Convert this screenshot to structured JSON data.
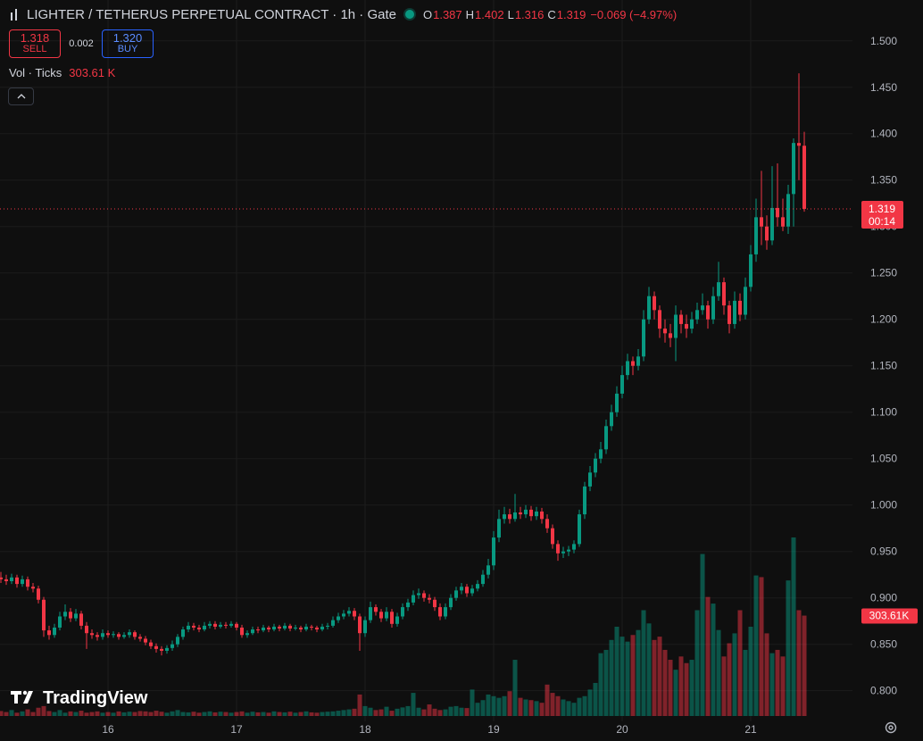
{
  "header": {
    "title": "LIGHTER / TETHERUS PERPETUAL CONTRACT · 1h · Gate",
    "legend": [
      {
        "label": "O",
        "value": 1.387
      },
      {
        "label": "H",
        "value": 1.402
      },
      {
        "label": "L",
        "value": 1.316
      },
      {
        "label": "C",
        "value": 1.319
      }
    ],
    "change": "−0.069 (−4.97%)",
    "sell": {
      "price": "1.318",
      "label": "SELL"
    },
    "spread": 0.002,
    "buy": {
      "price": "1.320",
      "label": "BUY"
    },
    "volume_title": "Vol · Ticks",
    "volume_value": "303.61 K",
    "watermark": "TradingView"
  },
  "chart_data": {
    "type": "candlestick",
    "up_color": "#089981",
    "down_color": "#f23645",
    "grid": true,
    "ylim": [
      0.767,
      1.544
    ],
    "yticks": [
      {
        "value": 0.8,
        "label": "0.800"
      },
      {
        "value": 0.85,
        "label": "0.850"
      },
      {
        "value": 0.9,
        "label": "0.900"
      },
      {
        "value": 0.95,
        "label": "0.950"
      },
      {
        "value": 1.0,
        "label": "1.000"
      },
      {
        "value": 1.05,
        "label": "1.050"
      },
      {
        "value": 1.1,
        "label": "1.100"
      },
      {
        "value": 1.15,
        "label": "1.150"
      },
      {
        "value": 1.2,
        "label": "1.200"
      },
      {
        "value": 1.25,
        "label": "1.250"
      },
      {
        "value": 1.3,
        "label": "1.300"
      },
      {
        "value": 1.35,
        "label": "1.350"
      },
      {
        "value": 1.4,
        "label": "1.400"
      },
      {
        "value": 1.45,
        "label": "1.450"
      },
      {
        "value": 1.5,
        "label": "1.500"
      }
    ],
    "last_price_label": "1.319",
    "countdown": "00:14",
    "volume_badge": "303.61K",
    "categories": [
      null,
      null,
      null,
      null,
      null,
      null,
      null,
      null,
      null,
      null,
      null,
      null,
      null,
      null,
      null,
      null,
      null,
      null,
      null,
      null,
      "16",
      null,
      null,
      null,
      null,
      null,
      null,
      null,
      null,
      null,
      null,
      null,
      null,
      null,
      null,
      null,
      null,
      null,
      null,
      null,
      null,
      null,
      null,
      null,
      "17",
      null,
      null,
      null,
      null,
      null,
      null,
      null,
      null,
      null,
      null,
      null,
      null,
      null,
      null,
      null,
      null,
      null,
      null,
      null,
      null,
      null,
      null,
      null,
      "18",
      null,
      null,
      null,
      null,
      null,
      null,
      null,
      null,
      null,
      null,
      null,
      null,
      null,
      null,
      null,
      null,
      null,
      null,
      null,
      null,
      null,
      null,
      null,
      "19",
      null,
      null,
      null,
      null,
      null,
      null,
      null,
      null,
      null,
      null,
      null,
      null,
      null,
      null,
      null,
      null,
      null,
      null,
      null,
      null,
      null,
      null,
      null,
      "20",
      null,
      null,
      null,
      null,
      null,
      null,
      null,
      null,
      null,
      null,
      null,
      null,
      null,
      null,
      null,
      null,
      null,
      null,
      null,
      null,
      null,
      null,
      null,
      "21",
      null,
      null,
      null,
      null,
      null,
      null,
      null,
      null,
      null,
      null
    ],
    "ohlc": [
      [
        0.922,
        0.928,
        0.916,
        0.92
      ],
      [
        0.92,
        0.925,
        0.914,
        0.918
      ],
      [
        0.918,
        0.926,
        0.915,
        0.922
      ],
      [
        0.922,
        0.925,
        0.911,
        0.915
      ],
      [
        0.915,
        0.924,
        0.912,
        0.92
      ],
      [
        0.92,
        0.923,
        0.908,
        0.912
      ],
      [
        0.912,
        0.916,
        0.906,
        0.91
      ],
      [
        0.91,
        0.913,
        0.894,
        0.898
      ],
      [
        0.898,
        0.901,
        0.858,
        0.865
      ],
      [
        0.865,
        0.87,
        0.855,
        0.86
      ],
      [
        0.86,
        0.872,
        0.857,
        0.868
      ],
      [
        0.868,
        0.885,
        0.865,
        0.88
      ],
      [
        0.88,
        0.893,
        0.876,
        0.885
      ],
      [
        0.885,
        0.889,
        0.874,
        0.878
      ],
      [
        0.878,
        0.888,
        0.875,
        0.883
      ],
      [
        0.883,
        0.886,
        0.866,
        0.87
      ],
      [
        0.87,
        0.874,
        0.845,
        0.862
      ],
      [
        0.862,
        0.866,
        0.856,
        0.86
      ],
      [
        0.86,
        0.863,
        0.854,
        0.858
      ],
      [
        0.858,
        0.866,
        0.855,
        0.862
      ],
      [
        0.862,
        0.865,
        0.857,
        0.86
      ],
      [
        0.86,
        0.864,
        0.857,
        0.861
      ],
      [
        0.861,
        0.863,
        0.855,
        0.858
      ],
      [
        0.858,
        0.863,
        0.856,
        0.86
      ],
      [
        0.86,
        0.866,
        0.857,
        0.863
      ],
      [
        0.863,
        0.865,
        0.855,
        0.858
      ],
      [
        0.858,
        0.861,
        0.853,
        0.856
      ],
      [
        0.856,
        0.859,
        0.849,
        0.852
      ],
      [
        0.852,
        0.855,
        0.845,
        0.848
      ],
      [
        0.848,
        0.851,
        0.841,
        0.845
      ],
      [
        0.845,
        0.848,
        0.838,
        0.843
      ],
      [
        0.843,
        0.849,
        0.84,
        0.846
      ],
      [
        0.846,
        0.854,
        0.843,
        0.85
      ],
      [
        0.85,
        0.861,
        0.847,
        0.858
      ],
      [
        0.858,
        0.869,
        0.855,
        0.866
      ],
      [
        0.866,
        0.874,
        0.863,
        0.87
      ],
      [
        0.87,
        0.873,
        0.865,
        0.868
      ],
      [
        0.868,
        0.871,
        0.863,
        0.866
      ],
      [
        0.866,
        0.874,
        0.864,
        0.87
      ],
      [
        0.87,
        0.875,
        0.867,
        0.872
      ],
      [
        0.872,
        0.875,
        0.866,
        0.869
      ],
      [
        0.869,
        0.874,
        0.867,
        0.871
      ],
      [
        0.871,
        0.874,
        0.867,
        0.87
      ],
      [
        0.87,
        0.875,
        0.868,
        0.872
      ],
      [
        0.872,
        0.874,
        0.865,
        0.868
      ],
      [
        0.868,
        0.871,
        0.857,
        0.86
      ],
      [
        0.86,
        0.865,
        0.857,
        0.862
      ],
      [
        0.862,
        0.869,
        0.86,
        0.866
      ],
      [
        0.866,
        0.869,
        0.862,
        0.865
      ],
      [
        0.865,
        0.871,
        0.863,
        0.868
      ],
      [
        0.868,
        0.87,
        0.863,
        0.866
      ],
      [
        0.866,
        0.872,
        0.864,
        0.869
      ],
      [
        0.869,
        0.871,
        0.864,
        0.867
      ],
      [
        0.867,
        0.873,
        0.865,
        0.87
      ],
      [
        0.87,
        0.872,
        0.864,
        0.867
      ],
      [
        0.867,
        0.871,
        0.865,
        0.868
      ],
      [
        0.868,
        0.87,
        0.863,
        0.866
      ],
      [
        0.866,
        0.872,
        0.864,
        0.869
      ],
      [
        0.869,
        0.871,
        0.865,
        0.868
      ],
      [
        0.868,
        0.87,
        0.863,
        0.866
      ],
      [
        0.866,
        0.872,
        0.864,
        0.869
      ],
      [
        0.869,
        0.873,
        0.866,
        0.87
      ],
      [
        0.87,
        0.88,
        0.868,
        0.876
      ],
      [
        0.876,
        0.884,
        0.873,
        0.88
      ],
      [
        0.88,
        0.887,
        0.877,
        0.883
      ],
      [
        0.883,
        0.89,
        0.88,
        0.886
      ],
      [
        0.886,
        0.889,
        0.876,
        0.88
      ],
      [
        0.88,
        0.883,
        0.843,
        0.862
      ],
      [
        0.862,
        0.88,
        0.858,
        0.876
      ],
      [
        0.876,
        0.896,
        0.873,
        0.89
      ],
      [
        0.89,
        0.893,
        0.881,
        0.885
      ],
      [
        0.885,
        0.888,
        0.874,
        0.878
      ],
      [
        0.878,
        0.89,
        0.875,
        0.885
      ],
      [
        0.885,
        0.888,
        0.868,
        0.872
      ],
      [
        0.872,
        0.884,
        0.869,
        0.88
      ],
      [
        0.88,
        0.894,
        0.877,
        0.89
      ],
      [
        0.89,
        0.899,
        0.886,
        0.895
      ],
      [
        0.895,
        0.908,
        0.892,
        0.903
      ],
      [
        0.903,
        0.91,
        0.899,
        0.905
      ],
      [
        0.905,
        0.908,
        0.896,
        0.9
      ],
      [
        0.9,
        0.904,
        0.894,
        0.898
      ],
      [
        0.898,
        0.901,
        0.886,
        0.89
      ],
      [
        0.89,
        0.894,
        0.876,
        0.88
      ],
      [
        0.88,
        0.894,
        0.877,
        0.89
      ],
      [
        0.89,
        0.904,
        0.887,
        0.9
      ],
      [
        0.9,
        0.912,
        0.897,
        0.908
      ],
      [
        0.908,
        0.916,
        0.904,
        0.912
      ],
      [
        0.912,
        0.915,
        0.901,
        0.905
      ],
      [
        0.905,
        0.914,
        0.902,
        0.91
      ],
      [
        0.91,
        0.919,
        0.907,
        0.915
      ],
      [
        0.915,
        0.93,
        0.912,
        0.925
      ],
      [
        0.925,
        0.942,
        0.921,
        0.935
      ],
      [
        0.935,
        0.972,
        0.93,
        0.965
      ],
      [
        0.965,
        0.995,
        0.96,
        0.985
      ],
      [
        0.985,
        0.998,
        0.98,
        0.99
      ],
      [
        0.99,
        0.996,
        0.98,
        0.985
      ],
      [
        0.985,
        1.012,
        0.982,
        0.992
      ],
      [
        0.992,
        0.998,
        0.985,
        0.99
      ],
      [
        0.99,
        1.0,
        0.986,
        0.995
      ],
      [
        0.995,
        0.999,
        0.983,
        0.988
      ],
      [
        0.988,
        0.998,
        0.984,
        0.993
      ],
      [
        0.993,
        0.997,
        0.98,
        0.985
      ],
      [
        0.985,
        0.99,
        0.97,
        0.975
      ],
      [
        0.975,
        0.979,
        0.953,
        0.958
      ],
      [
        0.958,
        0.962,
        0.94,
        0.948
      ],
      [
        0.948,
        0.955,
        0.943,
        0.95
      ],
      [
        0.95,
        0.956,
        0.945,
        0.952
      ],
      [
        0.952,
        0.962,
        0.948,
        0.958
      ],
      [
        0.958,
        0.995,
        0.955,
        0.99
      ],
      [
        0.99,
        1.025,
        0.985,
        1.02
      ],
      [
        1.02,
        1.042,
        1.015,
        1.035
      ],
      [
        1.035,
        1.056,
        1.03,
        1.05
      ],
      [
        1.05,
        1.068,
        1.045,
        1.06
      ],
      [
        1.06,
        1.092,
        1.055,
        1.085
      ],
      [
        1.085,
        1.108,
        1.08,
        1.1
      ],
      [
        1.1,
        1.128,
        1.095,
        1.12
      ],
      [
        1.12,
        1.15,
        1.115,
        1.14
      ],
      [
        1.14,
        1.163,
        1.135,
        1.155
      ],
      [
        1.155,
        1.16,
        1.14,
        1.15
      ],
      [
        1.15,
        1.168,
        1.145,
        1.16
      ],
      [
        1.16,
        1.21,
        1.155,
        1.2
      ],
      [
        1.2,
        1.235,
        1.195,
        1.225
      ],
      [
        1.225,
        1.23,
        1.2,
        1.21
      ],
      [
        1.21,
        1.215,
        1.18,
        1.19
      ],
      [
        1.19,
        1.2,
        1.175,
        1.185
      ],
      [
        1.185,
        1.195,
        1.17,
        1.18
      ],
      [
        1.18,
        1.215,
        1.155,
        1.205
      ],
      [
        1.205,
        1.21,
        1.185,
        1.195
      ],
      [
        1.195,
        1.205,
        1.18,
        1.19
      ],
      [
        1.19,
        1.208,
        1.185,
        1.2
      ],
      [
        1.2,
        1.218,
        1.195,
        1.21
      ],
      [
        1.21,
        1.228,
        1.205,
        1.215
      ],
      [
        1.215,
        1.22,
        1.19,
        1.2
      ],
      [
        1.2,
        1.235,
        1.195,
        1.225
      ],
      [
        1.225,
        1.262,
        1.22,
        1.24
      ],
      [
        1.24,
        1.245,
        1.205,
        1.215
      ],
      [
        1.215,
        1.22,
        1.185,
        1.195
      ],
      [
        1.195,
        1.23,
        1.19,
        1.22
      ],
      [
        1.22,
        1.228,
        1.198,
        1.205
      ],
      [
        1.205,
        1.245,
        1.2,
        1.235
      ],
      [
        1.235,
        1.28,
        1.23,
        1.27
      ],
      [
        1.27,
        1.33,
        1.262,
        1.31
      ],
      [
        1.31,
        1.36,
        1.28,
        1.3
      ],
      [
        1.3,
        1.312,
        1.275,
        1.285
      ],
      [
        1.285,
        1.365,
        1.28,
        1.32
      ],
      [
        1.32,
        1.368,
        1.3,
        1.31
      ],
      [
        1.31,
        1.33,
        1.295,
        1.3
      ],
      [
        1.3,
        1.345,
        1.292,
        1.335
      ],
      [
        1.335,
        1.395,
        1.3,
        1.39
      ],
      [
        1.39,
        1.465,
        1.35,
        1.387
      ],
      [
        1.387,
        1.402,
        1.316,
        1.319
      ]
    ],
    "volume": [
      15,
      12,
      18,
      10,
      14,
      20,
      12,
      25,
      30,
      15,
      12,
      18,
      10,
      14,
      12,
      16,
      10,
      12,
      14,
      10,
      12,
      10,
      14,
      11,
      13,
      12,
      15,
      14,
      12,
      16,
      13,
      10,
      14,
      18,
      12,
      11,
      13,
      10,
      12,
      14,
      11,
      13,
      12,
      10,
      12,
      14,
      10,
      13,
      11,
      12,
      10,
      14,
      12,
      11,
      13,
      10,
      12,
      14,
      11,
      10,
      12,
      13,
      14,
      16,
      18,
      20,
      22,
      65,
      30,
      25,
      18,
      20,
      28,
      16,
      22,
      26,
      30,
      70,
      25,
      20,
      35,
      22,
      18,
      20,
      28,
      30,
      25,
      24,
      80,
      40,
      48,
      65,
      60,
      55,
      60,
      75,
      170,
      55,
      50,
      48,
      45,
      40,
      95,
      70,
      60,
      50,
      45,
      40,
      55,
      60,
      80,
      100,
      190,
      200,
      230,
      270,
      240,
      225,
      245,
      260,
      320,
      280,
      230,
      240,
      200,
      170,
      140,
      180,
      160,
      170,
      320,
      490,
      360,
      340,
      260,
      180,
      220,
      250,
      320,
      200,
      270,
      425,
      420,
      250,
      190,
      200,
      180,
      410,
      540,
      320,
      303.61
    ]
  }
}
